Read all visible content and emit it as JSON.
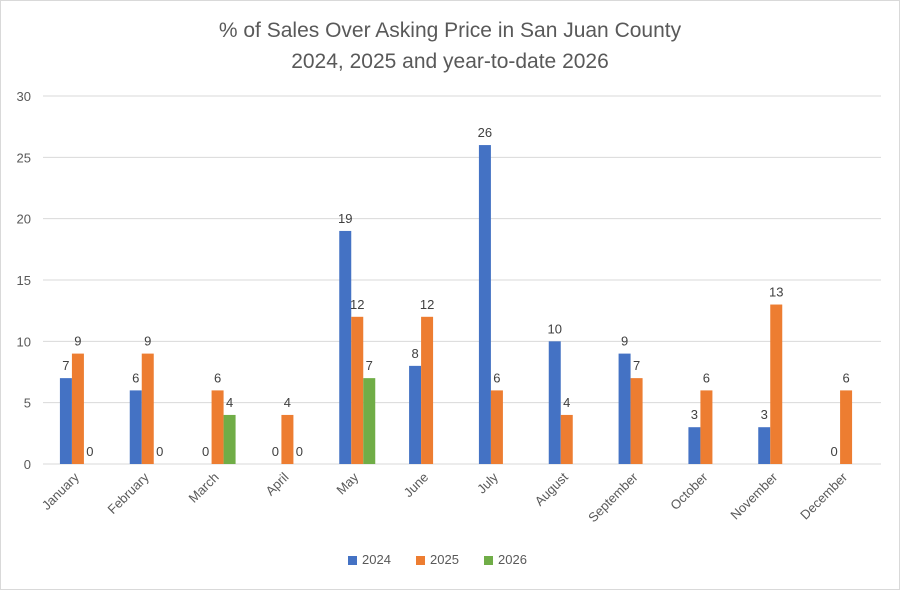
{
  "chart_data": {
    "type": "bar",
    "title": [
      "% of Sales Over Asking Price in San Juan County",
      "2024, 2025 and year-to-date 2026"
    ],
    "xlabel": "",
    "ylabel": "",
    "ylim": [
      0,
      30
    ],
    "yticks": [
      0,
      5,
      10,
      15,
      20,
      25,
      30
    ],
    "grid": true,
    "legend_position": "bottom",
    "categories": [
      "January",
      "February",
      "March",
      "April",
      "May",
      "June",
      "July",
      "August",
      "September",
      "October",
      "November",
      "December"
    ],
    "series": [
      {
        "name": "2024",
        "color": "#4472c4",
        "values": [
          7,
          6,
          0,
          0,
          19,
          8,
          26,
          10,
          9,
          3,
          3,
          0
        ]
      },
      {
        "name": "2025",
        "color": "#ed7d31",
        "values": [
          9,
          9,
          6,
          4,
          12,
          12,
          6,
          4,
          7,
          6,
          13,
          6
        ]
      },
      {
        "name": "2026",
        "color": "#70ad47",
        "values": [
          0,
          0,
          4,
          0,
          7,
          null,
          null,
          null,
          null,
          null,
          null,
          null
        ]
      }
    ]
  }
}
